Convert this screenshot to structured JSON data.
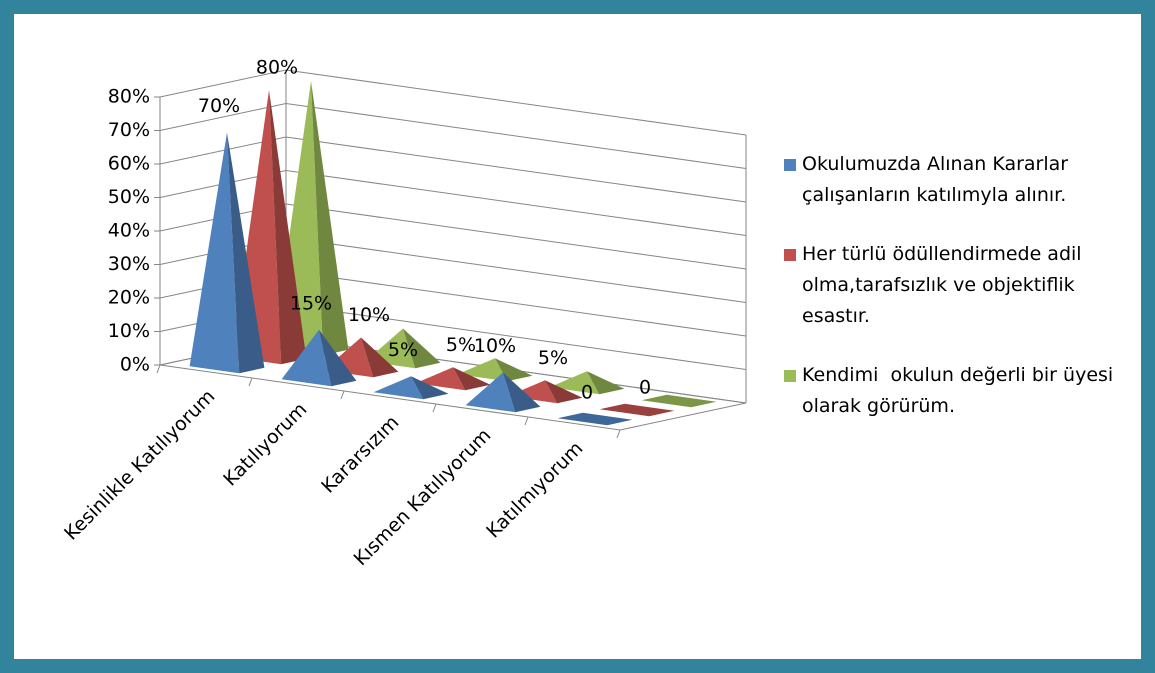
{
  "chart_data": {
    "type": "pyramid3d",
    "categories": [
      "Kesinlikle Katılıyorum",
      "Katılıyorum",
      "Kararsızım",
      "Kısmen Katılıyorum",
      "Katılmıyorum"
    ],
    "series": [
      {
        "name": "Okulumuzda Alınan Kararlar çalışanların katılımyla alınır.",
        "color": "#4f81bd",
        "values": [
          70,
          15,
          5,
          10,
          0
        ],
        "value_labels": [
          "70%",
          "15%",
          "5%",
          "10%",
          "0"
        ]
      },
      {
        "name": "Her türlü ödüllendirmede adil olma,tarafsızlık ve objektiflik esastır.",
        "color": "#c0504d",
        "values": [
          80,
          10,
          5,
          5,
          0
        ],
        "value_labels": [
          "80%",
          "10%",
          "5%",
          "5%",
          "0"
        ]
      },
      {
        "name": "Kendimi  okulun değerli bir üyesi olarak görürüm.",
        "color": "#9bbb59",
        "values": [
          80,
          10,
          5,
          5,
          0
        ]
      }
    ],
    "ylim": [
      0,
      80
    ],
    "yticks": [
      {
        "value": 0,
        "label": "0%"
      },
      {
        "value": 10,
        "label": "10%"
      },
      {
        "value": 20,
        "label": "20%"
      },
      {
        "value": 30,
        "label": "30%"
      },
      {
        "value": 40,
        "label": "40%"
      },
      {
        "value": 50,
        "label": "50%"
      },
      {
        "value": 60,
        "label": "60%"
      },
      {
        "value": 70,
        "label": "70%"
      },
      {
        "value": 80,
        "label": "80%"
      }
    ],
    "grid": true,
    "legend": "right"
  }
}
